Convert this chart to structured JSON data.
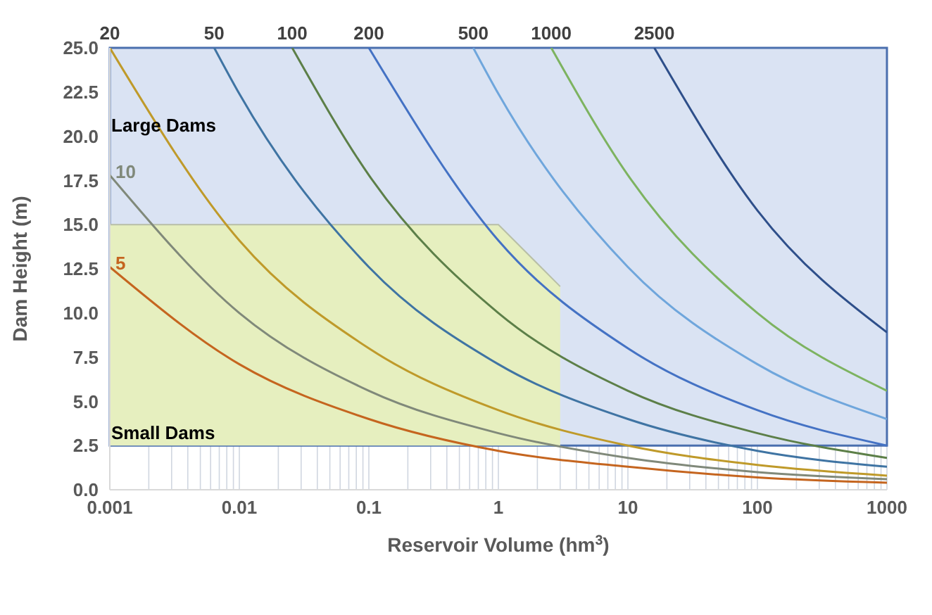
{
  "chart_data": {
    "type": "line",
    "xlabel": "Reservoir Volume (hm$^{3}$)",
    "ylabel": "Dam Height (m)",
    "log": "x",
    "grid": true,
    "marker": "none",
    "line_style": "solid",
    "xlim": [
      0.001,
      1000
    ],
    "xticks": [
      0.001,
      0.01,
      0.1,
      1,
      10,
      100,
      1000
    ],
    "ylim": [
      0,
      25
    ],
    "yticks": [
      {
        "value": 0,
        "label": "0.0"
      },
      {
        "value": 2.5,
        "label": "2.5"
      },
      {
        "value": 5,
        "label": "5.0"
      },
      {
        "value": 7.5,
        "label": "7.5"
      },
      {
        "value": 10,
        "label": "10.0"
      },
      {
        "value": 12.5,
        "label": "12.5"
      },
      {
        "value": 15,
        "label": "15.0"
      },
      {
        "value": 17.5,
        "label": "17.5"
      },
      {
        "value": 20,
        "label": "20.0"
      },
      {
        "value": 22.5,
        "label": "22.5"
      },
      {
        "value": 25,
        "label": "25.0"
      }
    ],
    "bands": [
      {
        "axis": "y",
        "from": 2.5,
        "to": 25,
        "color": "#dae3f3"
      }
    ],
    "annotations": [
      {
        "text": "Large Dams",
        "x": 0.001,
        "y": 20.6
      },
      {
        "text": "Small Dams",
        "x": 0.001,
        "y": 3.2
      }
    ],
    "series": [
      {
        "type": "area",
        "color": "#e6efbf",
        "x": [
          0.001,
          1,
          3
        ],
        "values": [
          15,
          15,
          11.5
        ]
      },
      {
        "name": "5",
        "color": "#c5651f",
        "x": [
          0.001,
          0.01,
          0.1,
          1,
          10,
          100,
          1000
        ],
        "values": [
          12.6,
          7.1,
          4.0,
          2.2,
          1.3,
          0.7,
          0.4
        ]
      },
      {
        "name": "10",
        "color": "#80897a",
        "x": [
          0.001,
          0.01,
          0.1,
          1,
          10,
          100,
          1000
        ],
        "values": [
          17.8,
          10.0,
          5.6,
          3.2,
          1.8,
          1.0,
          0.6
        ]
      },
      {
        "name": "20",
        "color": "#bf9a2a",
        "x": [
          0.001,
          0.01,
          0.1,
          1,
          10,
          100,
          1000
        ],
        "values": [
          25,
          14.1,
          8.0,
          4.5,
          2.5,
          1.4,
          0.8
        ]
      },
      {
        "name": "50",
        "color": "#3f74a3",
        "x": [
          0.0064,
          0.01,
          0.1,
          1,
          10,
          100,
          1000
        ],
        "values": [
          25,
          22.4,
          12.6,
          7.1,
          4.0,
          2.2,
          1.3
        ]
      },
      {
        "name": "100",
        "color": "#5c7f48",
        "x": [
          0.0256,
          0.1,
          1,
          10,
          100,
          1000
        ],
        "values": [
          25,
          17.8,
          10.0,
          5.6,
          3.2,
          1.8
        ]
      },
      {
        "name": "200",
        "color": "#4472c4",
        "x": [
          0.1,
          1,
          10,
          100,
          1000
        ],
        "values": [
          25,
          14.1,
          8.0,
          4.5,
          2.5
        ]
      },
      {
        "name": "500",
        "color": "#6fa6dc",
        "x": [
          0.64,
          1,
          10,
          100,
          1000
        ],
        "values": [
          25,
          22.4,
          12.6,
          7.1,
          4.0
        ]
      },
      {
        "name": "1000",
        "color": "#7db360",
        "x": [
          2.56,
          10,
          100,
          1000
        ],
        "values": [
          25,
          17.8,
          10.0,
          5.6
        ]
      },
      {
        "name": "2500",
        "color": "#2e4f8a",
        "x": [
          16,
          100,
          1000
        ],
        "values": [
          25,
          15.8,
          8.9
        ]
      }
    ]
  }
}
